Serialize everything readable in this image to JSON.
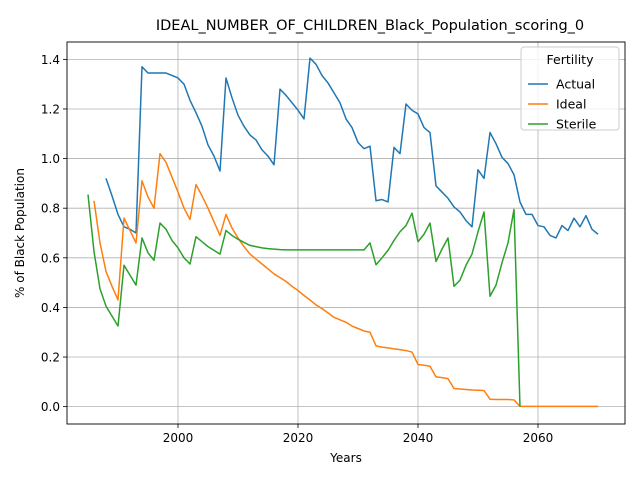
{
  "chart_data": {
    "type": "line",
    "title": "IDEAL_NUMBER_OF_CHILDREN_Black_Population_scoring_0",
    "xlabel": "Years",
    "ylabel": "% of Black Population",
    "xlim": [
      1981.5,
      2074.5
    ],
    "ylim": [
      -0.07,
      1.47
    ],
    "xticks": [
      2000,
      2020,
      2040,
      2060
    ],
    "xtick_labels": [
      "2000",
      "2020",
      "2040",
      "2060"
    ],
    "yticks": [
      0.0,
      0.2,
      0.4,
      0.6,
      0.8,
      1.0,
      1.2,
      1.4
    ],
    "ytick_labels": [
      "0.0",
      "0.2",
      "0.4",
      "0.6",
      "0.8",
      "1.0",
      "1.2",
      "1.4"
    ],
    "grid": true,
    "legend": {
      "title": "Fertility",
      "placement": "top-right"
    },
    "series": [
      {
        "name": "Actual",
        "color": "#1f77b4",
        "x": [
          1988,
          1989,
          1990,
          1991,
          1992,
          1993,
          1994,
          1995,
          1996,
          1997,
          1998,
          1999,
          2000,
          2001,
          2002,
          2003,
          2004,
          2005,
          2006,
          2007,
          2008,
          2009,
          2010,
          2011,
          2012,
          2013,
          2014,
          2015,
          2016,
          2017,
          2018,
          2019,
          2020,
          2021,
          2022,
          2023,
          2024,
          2025,
          2026,
          2027,
          2028,
          2029,
          2030,
          2031,
          2032,
          2033,
          2034,
          2035,
          2036,
          2037,
          2038,
          2039,
          2040,
          2041,
          2042,
          2043,
          2044,
          2045,
          2046,
          2047,
          2048,
          2049,
          2050,
          2051,
          2052,
          2053,
          2054,
          2055,
          2056,
          2057,
          2058,
          2059,
          2060,
          2061,
          2062,
          2063,
          2064,
          2065,
          2066,
          2067,
          2068,
          2069,
          2070
        ],
        "values": [
          0.92,
          0.85,
          0.775,
          0.725,
          0.715,
          0.7,
          1.37,
          1.345,
          1.345,
          1.345,
          1.345,
          1.335,
          1.325,
          1.3,
          1.235,
          1.185,
          1.13,
          1.055,
          1.01,
          0.95,
          1.325,
          1.245,
          1.175,
          1.13,
          1.095,
          1.075,
          1.035,
          1.01,
          0.975,
          1.28,
          1.255,
          1.225,
          1.195,
          1.16,
          1.405,
          1.38,
          1.335,
          1.305,
          1.265,
          1.225,
          1.16,
          1.125,
          1.065,
          1.04,
          1.05,
          0.83,
          0.835,
          0.825,
          1.045,
          1.02,
          1.22,
          1.195,
          1.18,
          1.125,
          1.105,
          0.89,
          0.865,
          0.84,
          0.805,
          0.785,
          0.75,
          0.725,
          0.955,
          0.92,
          1.105,
          1.06,
          1.005,
          0.98,
          0.935,
          0.825,
          0.775,
          0.775,
          0.73,
          0.725,
          0.69,
          0.68,
          0.73,
          0.71,
          0.76,
          0.725,
          0.77,
          0.715,
          0.695
        ]
      },
      {
        "name": "Ideal",
        "color": "#ff7f0e",
        "x": [
          1986,
          1987,
          1988,
          1989,
          1990,
          1991,
          1992,
          1993,
          1994,
          1995,
          1996,
          1997,
          1998,
          1999,
          2000,
          2001,
          2002,
          2003,
          2004,
          2005,
          2006,
          2007,
          2008,
          2009,
          2010,
          2011,
          2012,
          2013,
          2014,
          2015,
          2016,
          2017,
          2018,
          2019,
          2020,
          2021,
          2022,
          2023,
          2024,
          2025,
          2026,
          2027,
          2028,
          2029,
          2030,
          2031,
          2032,
          2033,
          2034,
          2035,
          2036,
          2037,
          2038,
          2039,
          2040,
          2041,
          2042,
          2043,
          2044,
          2045,
          2046,
          2047,
          2048,
          2049,
          2050,
          2051,
          2052,
          2053,
          2054,
          2055,
          2056,
          2057,
          2058,
          2059,
          2060,
          2061,
          2062,
          2063,
          2064,
          2065,
          2066,
          2067,
          2068,
          2069,
          2070
        ],
        "values": [
          0.83,
          0.66,
          0.545,
          0.485,
          0.43,
          0.76,
          0.71,
          0.66,
          0.91,
          0.845,
          0.8,
          1.02,
          0.985,
          0.925,
          0.865,
          0.8,
          0.755,
          0.895,
          0.85,
          0.8,
          0.745,
          0.69,
          0.775,
          0.72,
          0.68,
          0.645,
          0.615,
          0.595,
          0.575,
          0.555,
          0.535,
          0.52,
          0.505,
          0.485,
          0.468,
          0.448,
          0.43,
          0.41,
          0.395,
          0.378,
          0.36,
          0.35,
          0.34,
          0.325,
          0.315,
          0.305,
          0.3,
          0.245,
          0.24,
          0.237,
          0.233,
          0.23,
          0.226,
          0.22,
          0.17,
          0.167,
          0.163,
          0.12,
          0.117,
          0.113,
          0.073,
          0.071,
          0.069,
          0.067,
          0.066,
          0.065,
          0.03,
          0.029,
          0.029,
          0.029,
          0.027,
          0.001,
          0.001,
          0.001,
          0.001,
          0.001,
          0.001,
          0.001,
          0.001,
          0.001,
          0.001,
          0.001,
          0.001,
          0.001,
          0.001
        ]
      },
      {
        "name": "Sterile",
        "color": "#2ca02c",
        "x": [
          1985,
          1986,
          1987,
          1988,
          1989,
          1990,
          1991,
          1992,
          1993,
          1994,
          1995,
          1996,
          1997,
          1998,
          1999,
          2000,
          2001,
          2002,
          2003,
          2004,
          2005,
          2006,
          2007,
          2008,
          2009,
          2010,
          2011,
          2012,
          2013,
          2014,
          2015,
          2016,
          2017,
          2018,
          2019,
          2020,
          2021,
          2022,
          2023,
          2024,
          2025,
          2026,
          2027,
          2028,
          2029,
          2030,
          2031,
          2032,
          2033,
          2034,
          2035,
          2036,
          2037,
          2038,
          2039,
          2040,
          2041,
          2042,
          2043,
          2044,
          2045,
          2046,
          2047,
          2048,
          2049,
          2050,
          2051,
          2052,
          2053,
          2054,
          2055,
          2056,
          2057
        ],
        "values": [
          0.855,
          0.625,
          0.475,
          0.405,
          0.365,
          0.325,
          0.57,
          0.53,
          0.49,
          0.68,
          0.62,
          0.59,
          0.74,
          0.715,
          0.67,
          0.64,
          0.6,
          0.575,
          0.685,
          0.665,
          0.645,
          0.63,
          0.615,
          0.71,
          0.69,
          0.675,
          0.662,
          0.65,
          0.645,
          0.64,
          0.637,
          0.635,
          0.633,
          0.632,
          0.632,
          0.632,
          0.632,
          0.632,
          0.632,
          0.632,
          0.632,
          0.632,
          0.632,
          0.632,
          0.632,
          0.632,
          0.632,
          0.66,
          0.572,
          0.6,
          0.63,
          0.67,
          0.705,
          0.73,
          0.78,
          0.665,
          0.695,
          0.74,
          0.585,
          0.635,
          0.68,
          0.485,
          0.51,
          0.57,
          0.615,
          0.705,
          0.785,
          0.445,
          0.49,
          0.58,
          0.66,
          0.795,
          0.0
        ]
      }
    ]
  }
}
